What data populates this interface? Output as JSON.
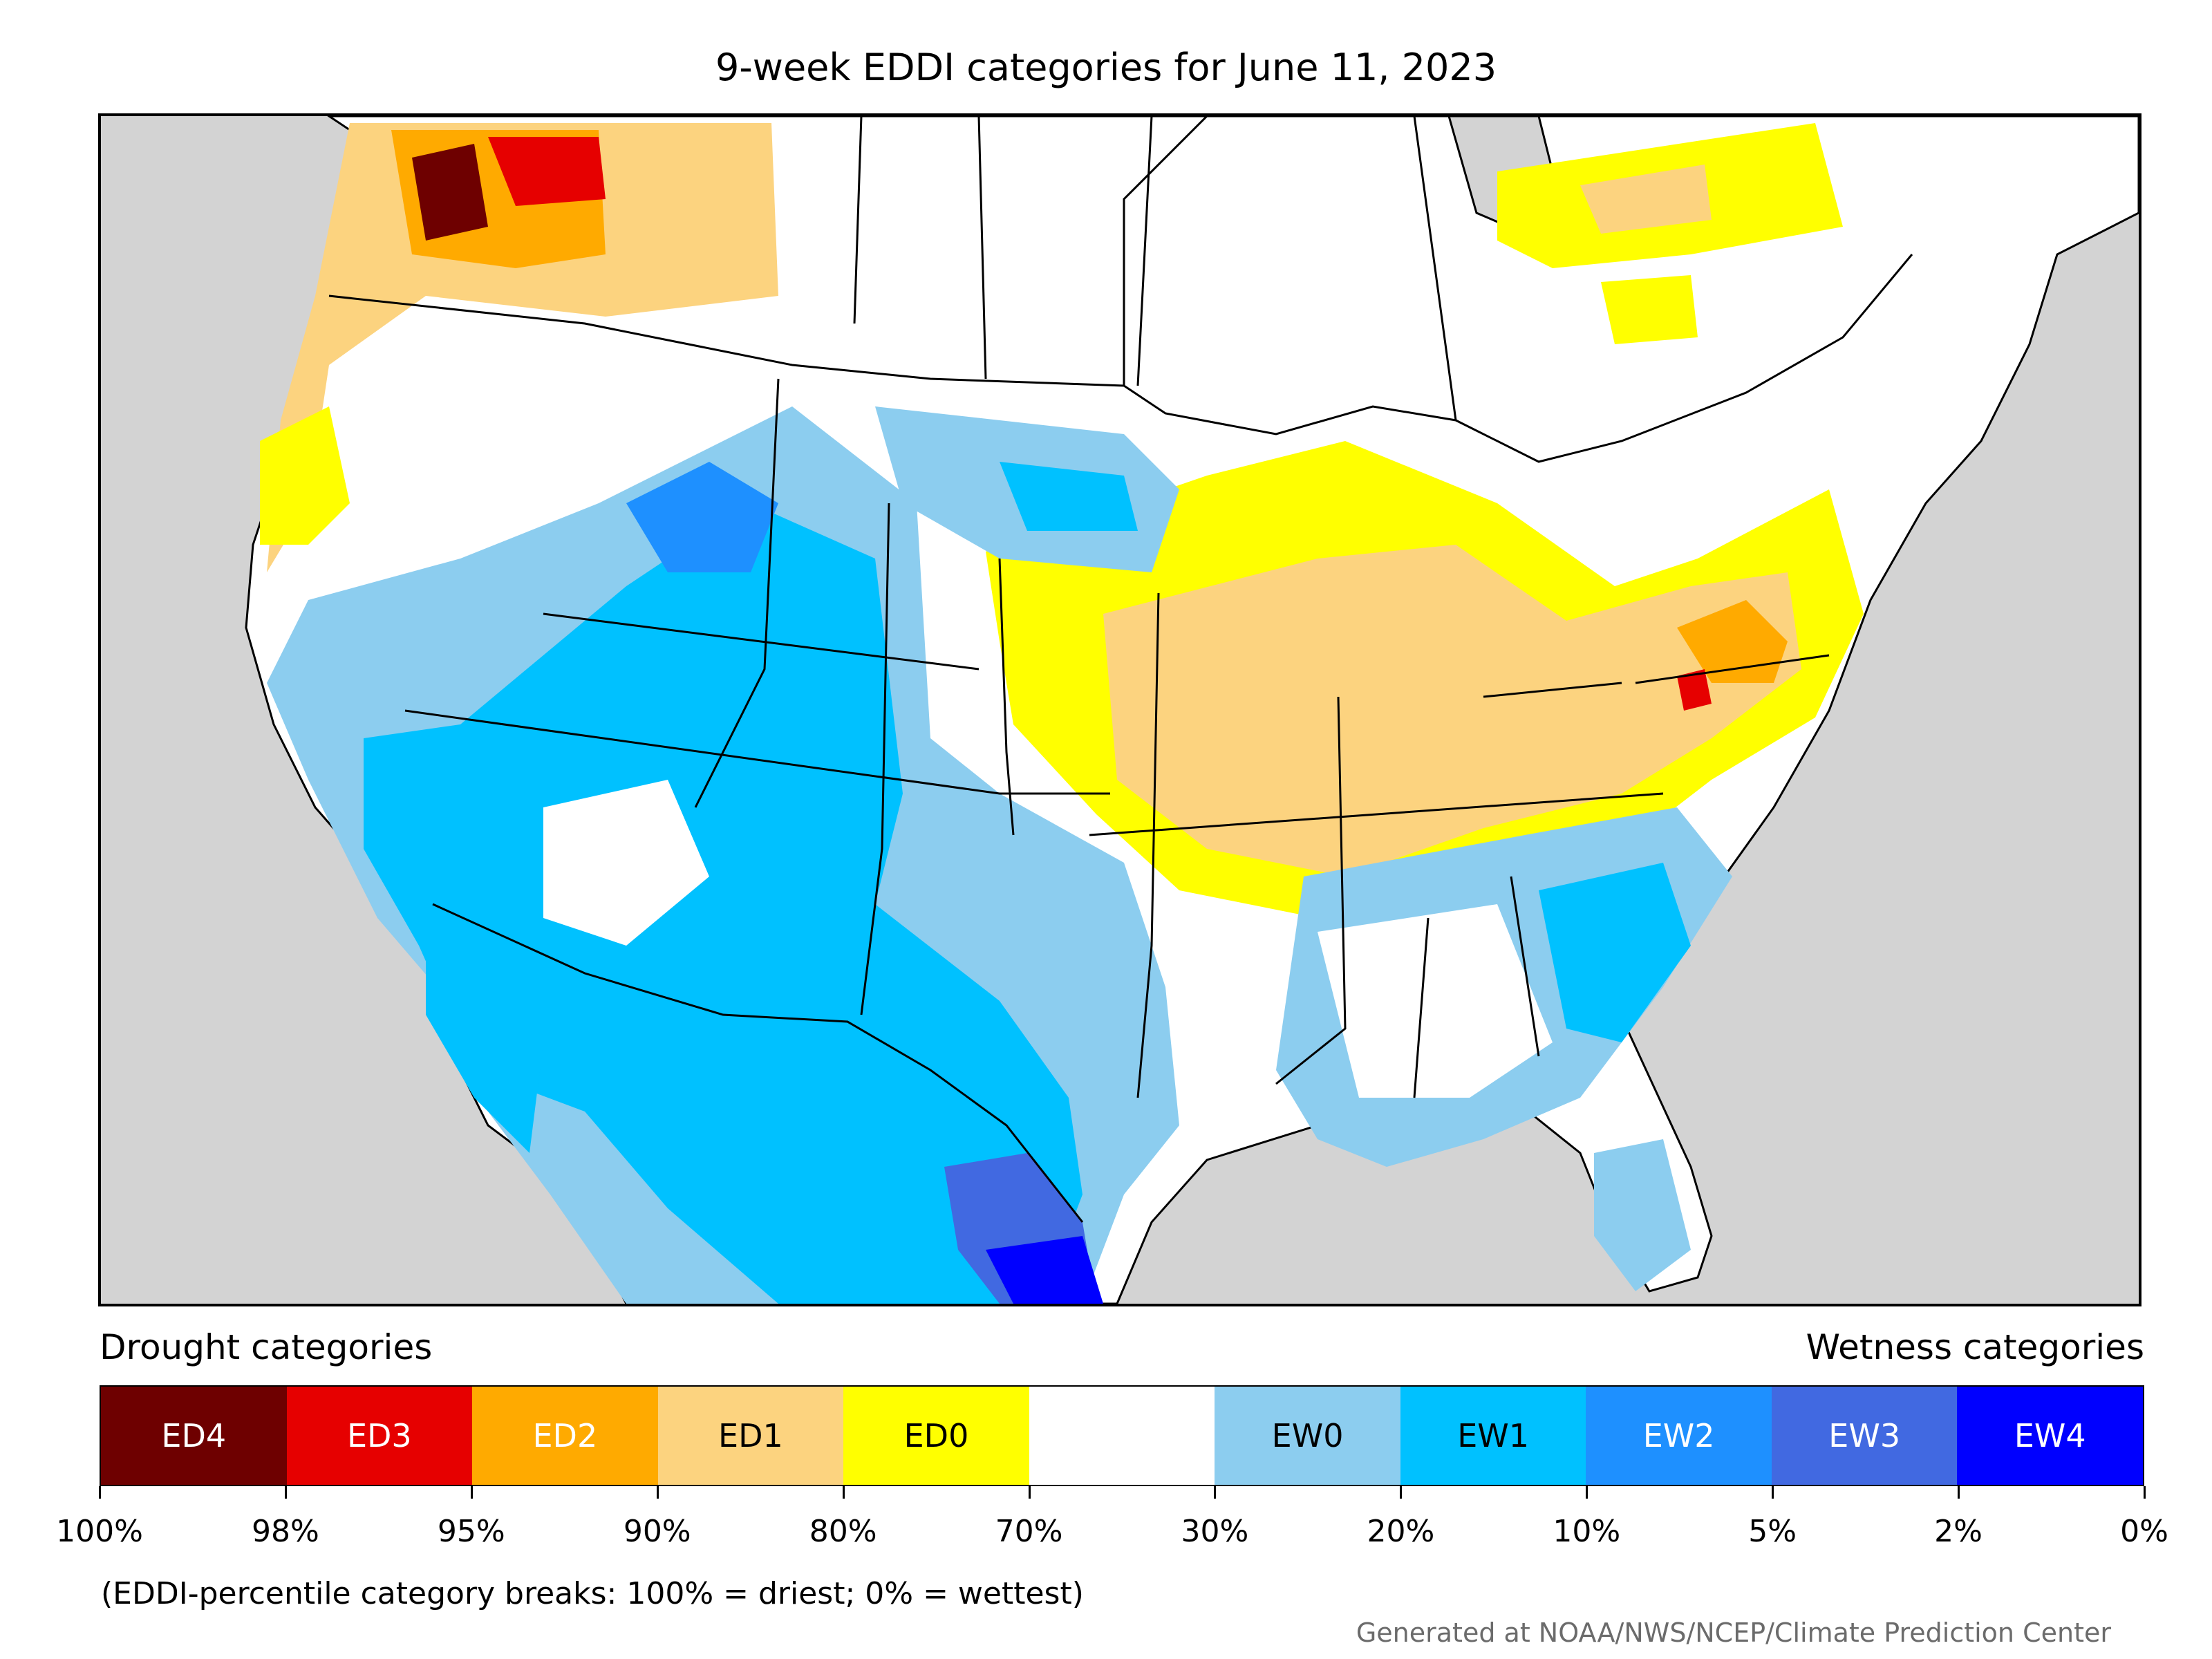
{
  "title": "9-week EDDI categories for June 11, 2023",
  "legend": {
    "drought_heading": "Drought categories",
    "wetness_heading": "Wetness categories",
    "categories": [
      {
        "label": "ED4",
        "color": "#6e0000",
        "text_color": "#ffffff"
      },
      {
        "label": "ED3",
        "color": "#e60000",
        "text_color": "#ffffff"
      },
      {
        "label": "ED2",
        "color": "#ffaa00",
        "text_color": "#ffffff"
      },
      {
        "label": "ED1",
        "color": "#fcd37f",
        "text_color": "#000000"
      },
      {
        "label": "ED0",
        "color": "#ffff00",
        "text_color": "#000000"
      },
      {
        "label": "",
        "color": "#ffffff",
        "text_color": "#000000"
      },
      {
        "label": "EW0",
        "color": "#8ccdef",
        "text_color": "#000000"
      },
      {
        "label": "EW1",
        "color": "#00c1ff",
        "text_color": "#000000"
      },
      {
        "label": "EW2",
        "color": "#1e90ff",
        "text_color": "#ffffff"
      },
      {
        "label": "EW3",
        "color": "#4169e1",
        "text_color": "#ffffff"
      },
      {
        "label": "EW4",
        "color": "#0000ff",
        "text_color": "#ffffff"
      }
    ],
    "breaks": [
      "100%",
      "98%",
      "95%",
      "90%",
      "80%",
      "70%",
      "30%",
      "20%",
      "10%",
      "5%",
      "2%",
      "0%"
    ]
  },
  "footnote": "(EDDI-percentile category breaks: 100% = driest; 0% = wettest)",
  "credit": "Generated at NOAA/NWS/NCEP/Climate Prediction Center",
  "colors": {
    "ocean": "#d3d3d3",
    "land": "#ffffff",
    "border": "#000000"
  }
}
